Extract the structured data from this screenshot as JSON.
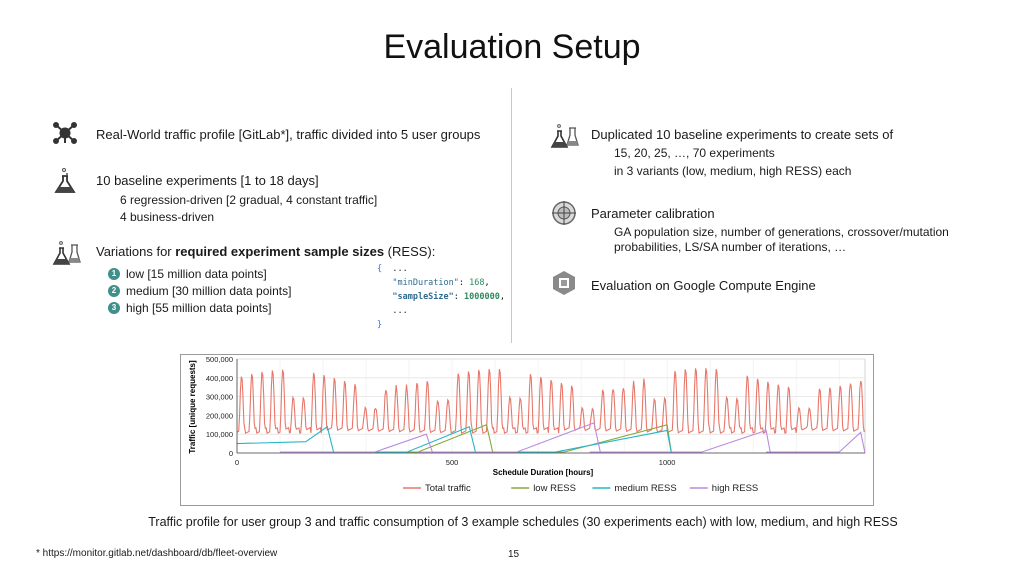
{
  "title": "Evaluation Setup",
  "left": {
    "item1": {
      "text": "Real-World traffic profile [GitLab*], traffic divided into 5 user groups",
      "icon": "network-icon"
    },
    "item2": {
      "text": "10 baseline experiments [1 to 18 days]",
      "sub": [
        "6 regression-driven [2 gradual, 4 constant traffic]",
        "4 business-driven"
      ],
      "icon": "flask-icon"
    },
    "item3": {
      "text_prefix": "Variations for ",
      "text_bold": "required experiment sample sizes",
      "text_suffix": " (RESS):",
      "icon": "flasks-icon",
      "variants": [
        {
          "num": "1",
          "label": "low [15 million data points]"
        },
        {
          "num": "2",
          "label": "medium [30 million data points]"
        },
        {
          "num": "3",
          "label": "high [55 million data points]"
        }
      ]
    },
    "code": {
      "open": "{",
      "ellipsis1": "...",
      "key1": "\"minDuration\"",
      "colon": ": ",
      "val1": "168",
      "comma": ",",
      "key2": "\"sampleSize\"",
      "val2": "1000000",
      "ellipsis2": "...",
      "close": "}"
    }
  },
  "right": {
    "item1": {
      "text": "Duplicated 10 baseline experiments to create sets of",
      "sub": [
        "15, 20, 25, …, 70 experiments",
        "in 3 variants (low, medium, high RESS) each"
      ],
      "icon": "flasks-icon"
    },
    "item2": {
      "text": "Parameter calibration",
      "sub": [
        "GA population size, number of generations, crossover/mutation",
        "probabilities, LS/SA number of iterations, …"
      ],
      "icon": "crosshair-icon"
    },
    "item3": {
      "text": "Evaluation on Google Compute Engine",
      "icon": "cloud-engine-icon"
    }
  },
  "chart_data": {
    "type": "line",
    "xlabel": "Schedule Duration [hours]",
    "ylabel": "Traffic [unique requests]",
    "xlim": [
      0,
      1460
    ],
    "ylim": [
      0,
      500000
    ],
    "x_ticks": [
      "0",
      "500",
      "1000"
    ],
    "y_ticks": [
      "0",
      "100,000",
      "200,000",
      "300,000",
      "400,000",
      "500,000"
    ],
    "grid": true,
    "legend_position": "bottom",
    "series": [
      {
        "name": "Total traffic",
        "color": "#e8776a",
        "pattern": "daily periodic, baseline approx 120,000, peaks approx 400,000-480,000"
      },
      {
        "name": "low RESS",
        "color": "#86a93a",
        "segments": [
          [
            [
              240,
              5000
            ],
            [
              420,
              5000
            ],
            [
              580,
              150000
            ],
            [
              595,
              0
            ]
          ],
          [
            [
              560,
              5000
            ],
            [
              760,
              5000
            ],
            [
              1000,
              150000
            ],
            [
              1010,
              0
            ]
          ]
        ]
      },
      {
        "name": "medium RESS",
        "color": "#26b5c8",
        "segments": [
          [
            [
              0,
              50000
            ],
            [
              160,
              60000
            ],
            [
              210,
              140000
            ],
            [
              225,
              0
            ]
          ],
          [
            [
              195,
              5000
            ],
            [
              395,
              5000
            ],
            [
              540,
              140000
            ],
            [
              555,
              0
            ]
          ],
          [
            [
              540,
              5000
            ],
            [
              740,
              5000
            ],
            [
              1000,
              120000
            ],
            [
              1010,
              0
            ]
          ]
        ]
      },
      {
        "name": "high RESS",
        "color": "#b98be0",
        "segments": [
          [
            [
              100,
              5000
            ],
            [
              320,
              5000
            ],
            [
              440,
              100000
            ],
            [
              455,
              0
            ]
          ],
          [
            [
              420,
              5000
            ],
            [
              650,
              5000
            ],
            [
              830,
              160000
            ],
            [
              845,
              0
            ]
          ],
          [
            [
              820,
              5000
            ],
            [
              1080,
              5000
            ],
            [
              1230,
              120000
            ],
            [
              1240,
              0
            ]
          ],
          [
            [
              1230,
              5000
            ],
            [
              1400,
              5000
            ],
            [
              1450,
              110000
            ],
            [
              1460,
              0
            ]
          ]
        ]
      }
    ]
  },
  "caption": "Traffic profile for user group 3 and traffic consumption of 3 example schedules (30 experiments each) with low, medium, and high RESS",
  "footnote": "* https://monitor.gitlab.net/dashboard/db/fleet-overview",
  "page_number": "15"
}
